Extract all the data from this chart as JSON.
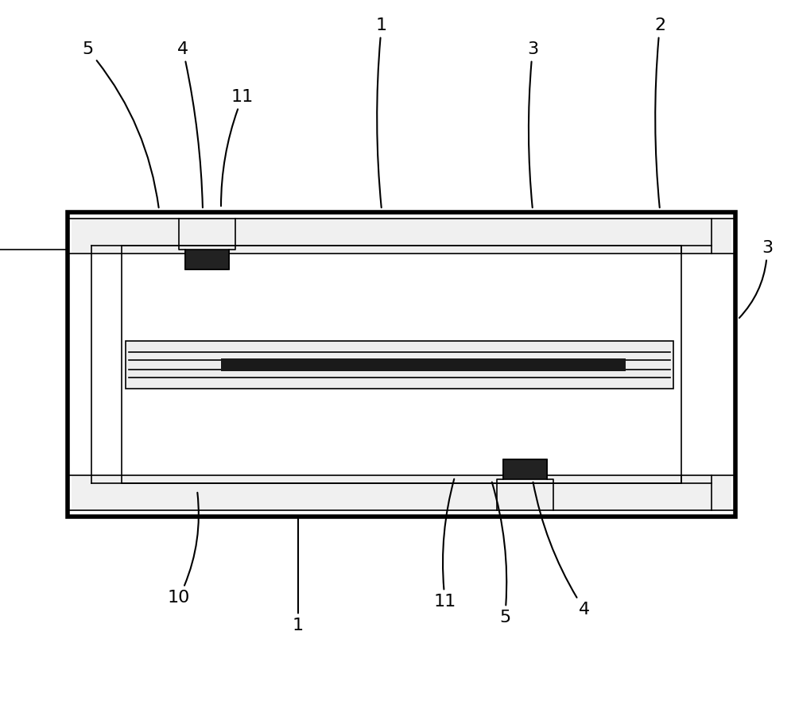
{
  "bg_color": "#ffffff",
  "line_color": "#000000",
  "fig_width": 10.0,
  "fig_height": 8.82,
  "lw_outer": 4.0,
  "lw_med": 2.0,
  "lw_thin": 1.2,
  "font_size": 16
}
